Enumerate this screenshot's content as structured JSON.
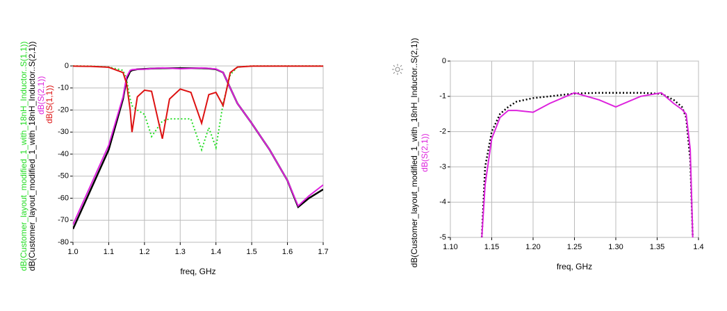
{
  "chart_data": [
    {
      "type": "line",
      "xlabel": "freq, GHz",
      "x": [
        1.0,
        1.05,
        1.1,
        1.14,
        1.15,
        1.16,
        1.165,
        1.18,
        1.2,
        1.22,
        1.25,
        1.27,
        1.3,
        1.33,
        1.36,
        1.38,
        1.4,
        1.42,
        1.44,
        1.46,
        1.5,
        1.55,
        1.6,
        1.63,
        1.66,
        1.7
      ],
      "xlim": [
        1.0,
        1.7
      ],
      "xticks": [
        {
          "value": 1.0,
          "label": "1.0"
        },
        1.1,
        1.2,
        1.3,
        1.4,
        1.5,
        1.6,
        1.7
      ],
      "ylim": [
        -80,
        0
      ],
      "yticks": [
        0,
        -10,
        -20,
        -30,
        -40,
        -50,
        -60,
        -70,
        -80
      ],
      "grid": true,
      "series": [
        {
          "name": "dB(Customer_layout_modified_1_with_18nH_Inductor..S(1,1))",
          "color": "#22dd22",
          "dash": "dotted",
          "values": [
            0,
            -0.1,
            -0.5,
            -2,
            -6,
            -15,
            -18,
            -20,
            -22,
            -32,
            -25,
            -24,
            -24,
            -24,
            -38,
            -28,
            -37,
            -17,
            -4,
            -0.5,
            0,
            0,
            0,
            0,
            0,
            0
          ]
        },
        {
          "name": "dB(Customer_layout_modified_1_with_18nH_Inductor..S(2,1))",
          "color": "#000000",
          "dash": "solid",
          "values": [
            -74,
            -56,
            -38,
            -15,
            -6,
            -2.5,
            -2,
            -1.5,
            -1.4,
            -1.2,
            -1,
            -1,
            -1,
            -1,
            -1,
            -1.2,
            -1.5,
            -3,
            -10,
            -17,
            -26,
            -38,
            -52,
            -64,
            -60,
            -56
          ]
        },
        {
          "name": "dB(S(2,1))",
          "color": "#dd22dd",
          "dash": "solid",
          "values": [
            -72,
            -54,
            -36,
            -14,
            -5,
            -2,
            -1.7,
            -1.5,
            -1.5,
            -1.2,
            -0.9,
            -1,
            -1.3,
            -1.1,
            -0.9,
            -1.1,
            -1.4,
            -3,
            -10,
            -17,
            -26,
            -38,
            -52,
            -63.5,
            -59,
            -54
          ]
        },
        {
          "name": "dB(S(1,1))",
          "color": "#dd1111",
          "dash": "solid",
          "values": [
            -0.1,
            -0.2,
            -0.6,
            -3,
            -8,
            -20,
            -30,
            -14,
            -11,
            -11.5,
            -33,
            -15,
            -10.5,
            -12,
            -26,
            -13,
            -12,
            -18,
            -3,
            -0.5,
            -0.1,
            -0.05,
            -0.05,
            -0.05,
            -0.05,
            -0.05
          ]
        }
      ]
    },
    {
      "type": "line",
      "xlabel": "freq, GHz",
      "x": [
        1.138,
        1.142,
        1.15,
        1.16,
        1.17,
        1.18,
        1.2,
        1.22,
        1.25,
        1.28,
        1.3,
        1.33,
        1.355,
        1.37,
        1.38,
        1.385,
        1.39,
        1.393
      ],
      "xlim": [
        1.1,
        1.4
      ],
      "xticks": [
        {
          "value": 1.1,
          "label": "1.10"
        },
        1.15,
        {
          "value": 1.2,
          "label": "1.20"
        },
        1.25,
        {
          "value": 1.3,
          "label": "1.30"
        },
        1.35,
        1.4
      ],
      "ylim": [
        -5,
        0
      ],
      "yticks": [
        0,
        -1,
        -2,
        -3,
        -4,
        -5
      ],
      "grid": true,
      "series": [
        {
          "name": "dB(Customer_layout_modified_1_with_18nH_Inductor..S(2,1))",
          "color": "#000000",
          "dash": "dotted",
          "values": [
            -5,
            -3,
            -2,
            -1.5,
            -1.3,
            -1.15,
            -1.05,
            -1,
            -0.92,
            -0.9,
            -0.9,
            -0.9,
            -0.93,
            -1.1,
            -1.3,
            -1.6,
            -2.8,
            -5
          ]
        },
        {
          "name": "dB(S(2,1))",
          "color": "#dd22dd",
          "dash": "solid",
          "values": [
            -5,
            -3.5,
            -2.2,
            -1.6,
            -1.4,
            -1.4,
            -1.45,
            -1.2,
            -0.9,
            -1.1,
            -1.3,
            -1,
            -0.9,
            -1.2,
            -1.37,
            -1.5,
            -2.5,
            -5
          ]
        }
      ]
    }
  ]
}
